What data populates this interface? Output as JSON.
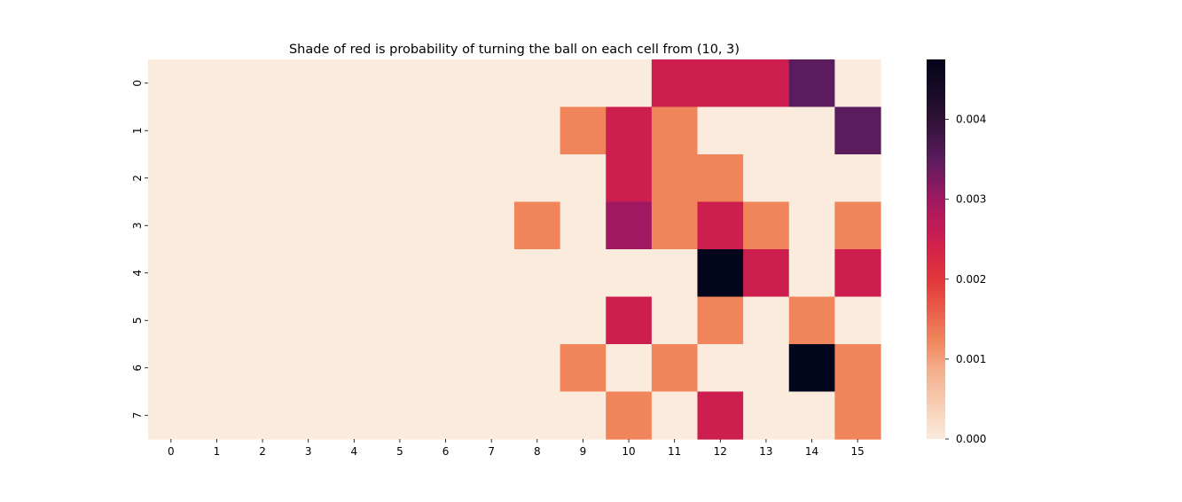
{
  "chart_data": {
    "type": "heatmap",
    "title": "Shade of red is probability of turning the ball on each cell from (10, 3)",
    "xlabel": "",
    "ylabel": "",
    "x_tick_labels": [
      "0",
      "1",
      "2",
      "3",
      "4",
      "5",
      "6",
      "7",
      "8",
      "9",
      "10",
      "11",
      "12",
      "13",
      "14",
      "15"
    ],
    "y_tick_labels": [
      "0",
      "1",
      "2",
      "3",
      "4",
      "5",
      "6",
      "7"
    ],
    "colorbar": {
      "min": 0.0,
      "max": 0.00475,
      "ticks": [
        0.0,
        0.001,
        0.002,
        0.003,
        0.004
      ],
      "tick_labels": [
        "0.000",
        "0.001",
        "0.002",
        "0.003",
        "0.004"
      ],
      "colormap": "rocket_r"
    },
    "grid": false,
    "values": [
      [
        0,
        0,
        0,
        0,
        0,
        0,
        0,
        0,
        0,
        0,
        0,
        0.0025,
        0.0025,
        0.0025,
        0.0035,
        0
      ],
      [
        0,
        0,
        0,
        0,
        0,
        0,
        0,
        0,
        0,
        0.00125,
        0.0025,
        0.00125,
        0,
        0,
        0,
        0.0035
      ],
      [
        0,
        0,
        0,
        0,
        0,
        0,
        0,
        0,
        0,
        0,
        0.0025,
        0.00125,
        0.00125,
        0,
        0,
        0
      ],
      [
        0,
        0,
        0,
        0,
        0,
        0,
        0,
        0,
        0.00125,
        0,
        0.003,
        0.00125,
        0.0025,
        0.00125,
        0,
        0.00125
      ],
      [
        0,
        0,
        0,
        0,
        0,
        0,
        0,
        0,
        0,
        0,
        0,
        0,
        0.00475,
        0.0025,
        0,
        0.0025
      ],
      [
        0,
        0,
        0,
        0,
        0,
        0,
        0,
        0,
        0,
        0,
        0.0025,
        0,
        0.00125,
        0,
        0.00125,
        0
      ],
      [
        0,
        0,
        0,
        0,
        0,
        0,
        0,
        0,
        0,
        0.00125,
        0,
        0.00125,
        0,
        0,
        0.00475,
        0.00125
      ],
      [
        0,
        0,
        0,
        0,
        0,
        0,
        0,
        0,
        0,
        0,
        0.00125,
        0,
        0.0025,
        0,
        0,
        0.00125
      ]
    ]
  }
}
